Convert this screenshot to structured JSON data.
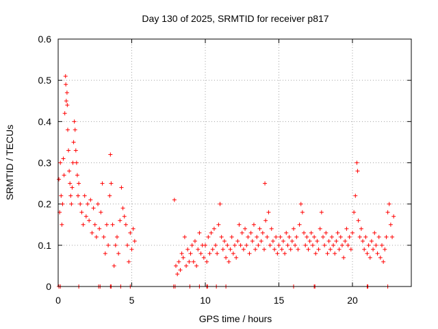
{
  "chart_data": {
    "type": "scatter",
    "title": "Day 130 of 2025, SRMTID for receiver p817",
    "xlabel": "GPS time / hours",
    "ylabel": "SRMTID / TECUs",
    "xlim": [
      0,
      24
    ],
    "ylim": [
      0,
      0.6
    ],
    "x_ticks": [
      0,
      5,
      10,
      15,
      20
    ],
    "x_tick_labels": [
      "0",
      "5",
      "10",
      "15",
      "20"
    ],
    "y_ticks": [
      0,
      0.1,
      0.2,
      0.3,
      0.4,
      0.5,
      0.6
    ],
    "y_tick_labels": [
      "0",
      "0.1",
      "0.2",
      "0.3",
      "0.4",
      "0.5",
      "0.6"
    ],
    "grid": true,
    "marker": "plus",
    "color": "#ff0000",
    "series": [
      {
        "name": "SRMTID",
        "points": [
          [
            0.05,
            0.26
          ],
          [
            0.1,
            0.18
          ],
          [
            0.15,
            0.3
          ],
          [
            0.2,
            0.22
          ],
          [
            0.25,
            0.15
          ],
          [
            0.3,
            0.2
          ],
          [
            0.35,
            0.31
          ],
          [
            0.4,
            0.27
          ],
          [
            0.45,
            0.42
          ],
          [
            0.5,
            0.51
          ],
          [
            0.52,
            0.49
          ],
          [
            0.55,
            0.45
          ],
          [
            0.6,
            0.47
          ],
          [
            0.62,
            0.44
          ],
          [
            0.65,
            0.38
          ],
          [
            0.7,
            0.33
          ],
          [
            0.75,
            0.28
          ],
          [
            0.8,
            0.25
          ],
          [
            0.85,
            0.22
          ],
          [
            0.9,
            0.2
          ],
          [
            0.95,
            0.24
          ],
          [
            1.0,
            0.3
          ],
          [
            1.05,
            0.35
          ],
          [
            1.1,
            0.4
          ],
          [
            1.15,
            0.38
          ],
          [
            1.2,
            0.33
          ],
          [
            1.25,
            0.3
          ],
          [
            1.3,
            0.27
          ],
          [
            1.35,
            0.22
          ],
          [
            1.4,
            0.25
          ],
          [
            1.5,
            0.2
          ],
          [
            1.6,
            0.18
          ],
          [
            1.7,
            0.15
          ],
          [
            1.8,
            0.22
          ],
          [
            1.9,
            0.17
          ],
          [
            2.0,
            0.2
          ],
          [
            2.1,
            0.16
          ],
          [
            2.2,
            0.21
          ],
          [
            2.3,
            0.13
          ],
          [
            2.4,
            0.19
          ],
          [
            2.5,
            0.15
          ],
          [
            2.6,
            0.12
          ],
          [
            2.7,
            0.2
          ],
          [
            2.8,
            0.14
          ],
          [
            2.9,
            0.18
          ],
          [
            3.0,
            0.25
          ],
          [
            3.1,
            0.12
          ],
          [
            3.2,
            0.08
          ],
          [
            3.3,
            0.15
          ],
          [
            3.4,
            0.1
          ],
          [
            3.5,
            0.22
          ],
          [
            3.55,
            0.32
          ],
          [
            3.6,
            0.25
          ],
          [
            3.7,
            0.15
          ],
          [
            3.8,
            0.05
          ],
          [
            3.9,
            0.1
          ],
          [
            4.0,
            0.12
          ],
          [
            4.1,
            0.08
          ],
          [
            4.2,
            0.16
          ],
          [
            4.3,
            0.24
          ],
          [
            4.4,
            0.19
          ],
          [
            4.5,
            0.17
          ],
          [
            4.6,
            0.15
          ],
          [
            4.7,
            0.1
          ],
          [
            4.8,
            0.06
          ],
          [
            4.9,
            0.13
          ],
          [
            5.0,
            0.09
          ],
          [
            5.1,
            0.14
          ],
          [
            5.2,
            0.11
          ],
          [
            7.9,
            0.21
          ],
          [
            8.0,
            0.05
          ],
          [
            8.1,
            0.03
          ],
          [
            8.2,
            0.06
          ],
          [
            8.3,
            0.04
          ],
          [
            8.4,
            0.08
          ],
          [
            8.5,
            0.07
          ],
          [
            8.6,
            0.12
          ],
          [
            8.7,
            0.05
          ],
          [
            8.8,
            0.09
          ],
          [
            8.9,
            0.06
          ],
          [
            9.0,
            0.08
          ],
          [
            9.1,
            0.1
          ],
          [
            9.2,
            0.06
          ],
          [
            9.3,
            0.11
          ],
          [
            9.4,
            0.05
          ],
          [
            9.5,
            0.09
          ],
          [
            9.6,
            0.13
          ],
          [
            9.7,
            0.08
          ],
          [
            9.8,
            0.1
          ],
          [
            9.9,
            0.07
          ],
          [
            10.0,
            0.1
          ],
          [
            10.1,
            0.06
          ],
          [
            10.2,
            0.12
          ],
          [
            10.3,
            0.08
          ],
          [
            10.4,
            0.13
          ],
          [
            10.5,
            0.09
          ],
          [
            10.6,
            0.14
          ],
          [
            10.7,
            0.1
          ],
          [
            10.8,
            0.08
          ],
          [
            10.9,
            0.15
          ],
          [
            11.0,
            0.2
          ],
          [
            11.1,
            0.12
          ],
          [
            11.2,
            0.09
          ],
          [
            11.3,
            0.11
          ],
          [
            11.4,
            0.07
          ],
          [
            11.5,
            0.1
          ],
          [
            11.6,
            0.06
          ],
          [
            11.7,
            0.09
          ],
          [
            11.8,
            0.12
          ],
          [
            11.9,
            0.08
          ],
          [
            12.0,
            0.1
          ],
          [
            12.1,
            0.07
          ],
          [
            12.2,
            0.11
          ],
          [
            12.3,
            0.15
          ],
          [
            12.4,
            0.1
          ],
          [
            12.5,
            0.13
          ],
          [
            12.6,
            0.09
          ],
          [
            12.7,
            0.14
          ],
          [
            12.8,
            0.1
          ],
          [
            12.9,
            0.12
          ],
          [
            13.0,
            0.08
          ],
          [
            13.1,
            0.13
          ],
          [
            13.2,
            0.11
          ],
          [
            13.3,
            0.15
          ],
          [
            13.4,
            0.09
          ],
          [
            13.5,
            0.12
          ],
          [
            13.6,
            0.1
          ],
          [
            13.7,
            0.14
          ],
          [
            13.8,
            0.11
          ],
          [
            13.9,
            0.13
          ],
          [
            14.0,
            0.09
          ],
          [
            14.05,
            0.25
          ],
          [
            14.1,
            0.16
          ],
          [
            14.2,
            0.12
          ],
          [
            14.3,
            0.18
          ],
          [
            14.4,
            0.1
          ],
          [
            14.5,
            0.14
          ],
          [
            14.6,
            0.11
          ],
          [
            14.7,
            0.09
          ],
          [
            14.8,
            0.12
          ],
          [
            14.9,
            0.08
          ],
          [
            15.0,
            0.1
          ],
          [
            15.1,
            0.12
          ],
          [
            15.2,
            0.09
          ],
          [
            15.3,
            0.11
          ],
          [
            15.4,
            0.08
          ],
          [
            15.5,
            0.13
          ],
          [
            15.6,
            0.1
          ],
          [
            15.7,
            0.12
          ],
          [
            15.8,
            0.09
          ],
          [
            15.9,
            0.11
          ],
          [
            16.0,
            0.14
          ],
          [
            16.1,
            0.1
          ],
          [
            16.2,
            0.12
          ],
          [
            16.3,
            0.09
          ],
          [
            16.4,
            0.15
          ],
          [
            16.5,
            0.2
          ],
          [
            16.6,
            0.18
          ],
          [
            16.7,
            0.13
          ],
          [
            16.8,
            0.1
          ],
          [
            16.9,
            0.12
          ],
          [
            17.0,
            0.09
          ],
          [
            17.1,
            0.11
          ],
          [
            17.2,
            0.13
          ],
          [
            17.3,
            0.1
          ],
          [
            17.4,
            0.12
          ],
          [
            17.5,
            0.08
          ],
          [
            17.6,
            0.11
          ],
          [
            17.7,
            0.09
          ],
          [
            17.8,
            0.14
          ],
          [
            17.9,
            0.18
          ],
          [
            18.0,
            0.12
          ],
          [
            18.1,
            0.1
          ],
          [
            18.2,
            0.13
          ],
          [
            18.3,
            0.08
          ],
          [
            18.4,
            0.11
          ],
          [
            18.5,
            0.09
          ],
          [
            18.6,
            0.12
          ],
          [
            18.7,
            0.1
          ],
          [
            18.8,
            0.08
          ],
          [
            18.9,
            0.11
          ],
          [
            19.0,
            0.13
          ],
          [
            19.1,
            0.09
          ],
          [
            19.2,
            0.12
          ],
          [
            19.3,
            0.1
          ],
          [
            19.4,
            0.07
          ],
          [
            19.5,
            0.11
          ],
          [
            19.6,
            0.14
          ],
          [
            19.7,
            0.1
          ],
          [
            19.8,
            0.12
          ],
          [
            19.9,
            0.09
          ],
          [
            20.0,
            0.13
          ],
          [
            20.1,
            0.18
          ],
          [
            20.2,
            0.22
          ],
          [
            20.3,
            0.3
          ],
          [
            20.35,
            0.28
          ],
          [
            20.4,
            0.16
          ],
          [
            20.5,
            0.12
          ],
          [
            20.6,
            0.14
          ],
          [
            20.7,
            0.11
          ],
          [
            20.8,
            0.09
          ],
          [
            20.9,
            0.12
          ],
          [
            21.0,
            0.08
          ],
          [
            21.1,
            0.1
          ],
          [
            21.2,
            0.07
          ],
          [
            21.3,
            0.11
          ],
          [
            21.4,
            0.09
          ],
          [
            21.5,
            0.13
          ],
          [
            21.6,
            0.1
          ],
          [
            21.7,
            0.08
          ],
          [
            21.8,
            0.12
          ],
          [
            21.9,
            0.07
          ],
          [
            22.0,
            0.1
          ],
          [
            22.1,
            0.06
          ],
          [
            22.2,
            0.09
          ],
          [
            22.3,
            0.12
          ],
          [
            22.4,
            0.18
          ],
          [
            22.5,
            0.2
          ],
          [
            22.6,
            0.15
          ],
          [
            22.7,
            0.12
          ],
          [
            22.8,
            0.17
          ]
        ]
      }
    ],
    "zero_points": [
      0.05,
      0.15,
      1.4,
      2.75,
      2.85,
      3.55,
      3.6,
      4.25,
      4.9,
      7.85,
      7.95,
      8.95,
      9.6,
      10.1,
      10.15,
      10.75,
      11.4,
      16.0,
      17.4,
      17.45,
      21.0,
      21.05,
      22.4
    ]
  }
}
